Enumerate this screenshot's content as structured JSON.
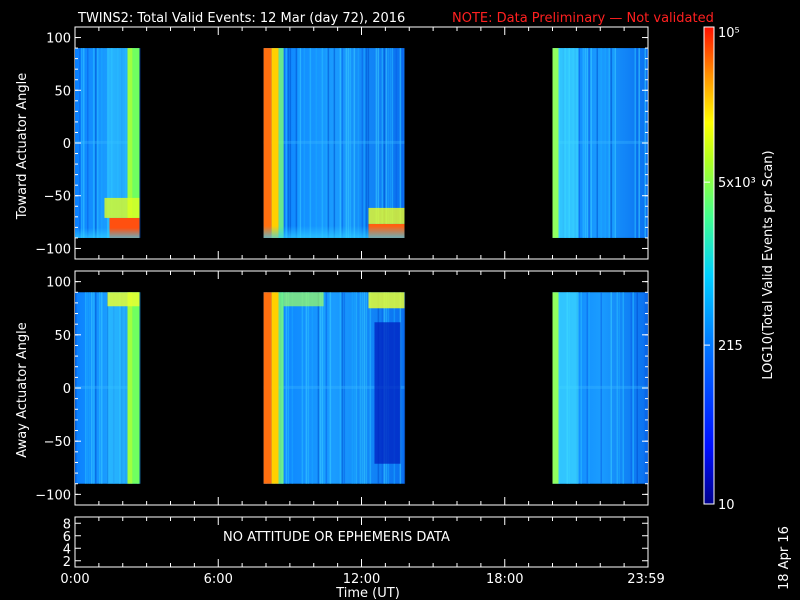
{
  "title": {
    "main": "TWINS2: Total Valid Events: 12 Mar (day  72), 2016",
    "note": "NOTE: Data Preliminary — Not validated"
  },
  "panels": {
    "top": {
      "ylabel": "Toward Actuator Angle",
      "yticks": [
        "100",
        "50",
        "0",
        "−50",
        "−100"
      ]
    },
    "middle": {
      "ylabel": "Away Actuator Angle",
      "yticks": [
        "100",
        "50",
        "0",
        "−50",
        "−100"
      ]
    },
    "bottom": {
      "yticks": [
        "8",
        "6",
        "4",
        "2"
      ],
      "message": "NO ATTITUDE OR EPHEMERIS DATA"
    }
  },
  "xaxis": {
    "label": "Time (UT)",
    "ticks": [
      "0:00",
      "6:00",
      "12:00",
      "18:00",
      "23:59"
    ]
  },
  "colorbar": {
    "label": "LOG10(Total Valid Events per Scan)",
    "ticks": [
      "10",
      "215",
      "5x10³",
      "10⁵"
    ]
  },
  "footer_date": "18 Apr 16",
  "chart_data": [
    {
      "type": "heatmap",
      "title": "",
      "xlabel": "",
      "ylabel": "Toward Actuator Angle",
      "xlim": [
        0,
        24
      ],
      "ylim": [
        -110,
        110
      ],
      "scale": "log",
      "zlim": [
        10,
        100000
      ],
      "data_coverage": [
        {
          "start_ut_hours": 0.0,
          "end_ut_hours": 2.7,
          "angle_range": [
            -90,
            90
          ]
        },
        {
          "start_ut_hours": 7.9,
          "end_ut_hours": 13.8,
          "angle_range": [
            -90,
            90
          ]
        },
        {
          "start_ut_hours": 20.0,
          "end_ut_hours": 23.99,
          "angle_range": [
            -90,
            90
          ]
        }
      ]
    },
    {
      "type": "heatmap",
      "title": "",
      "xlabel": "",
      "ylabel": "Away Actuator Angle",
      "xlim": [
        0,
        24
      ],
      "ylim": [
        -110,
        110
      ],
      "scale": "log",
      "zlim": [
        10,
        100000
      ],
      "data_coverage": [
        {
          "start_ut_hours": 0.0,
          "end_ut_hours": 2.7,
          "angle_range": [
            -90,
            90
          ]
        },
        {
          "start_ut_hours": 7.9,
          "end_ut_hours": 13.8,
          "angle_range": [
            -90,
            90
          ]
        },
        {
          "start_ut_hours": 20.0,
          "end_ut_hours": 23.99,
          "angle_range": [
            -90,
            90
          ]
        }
      ]
    }
  ]
}
